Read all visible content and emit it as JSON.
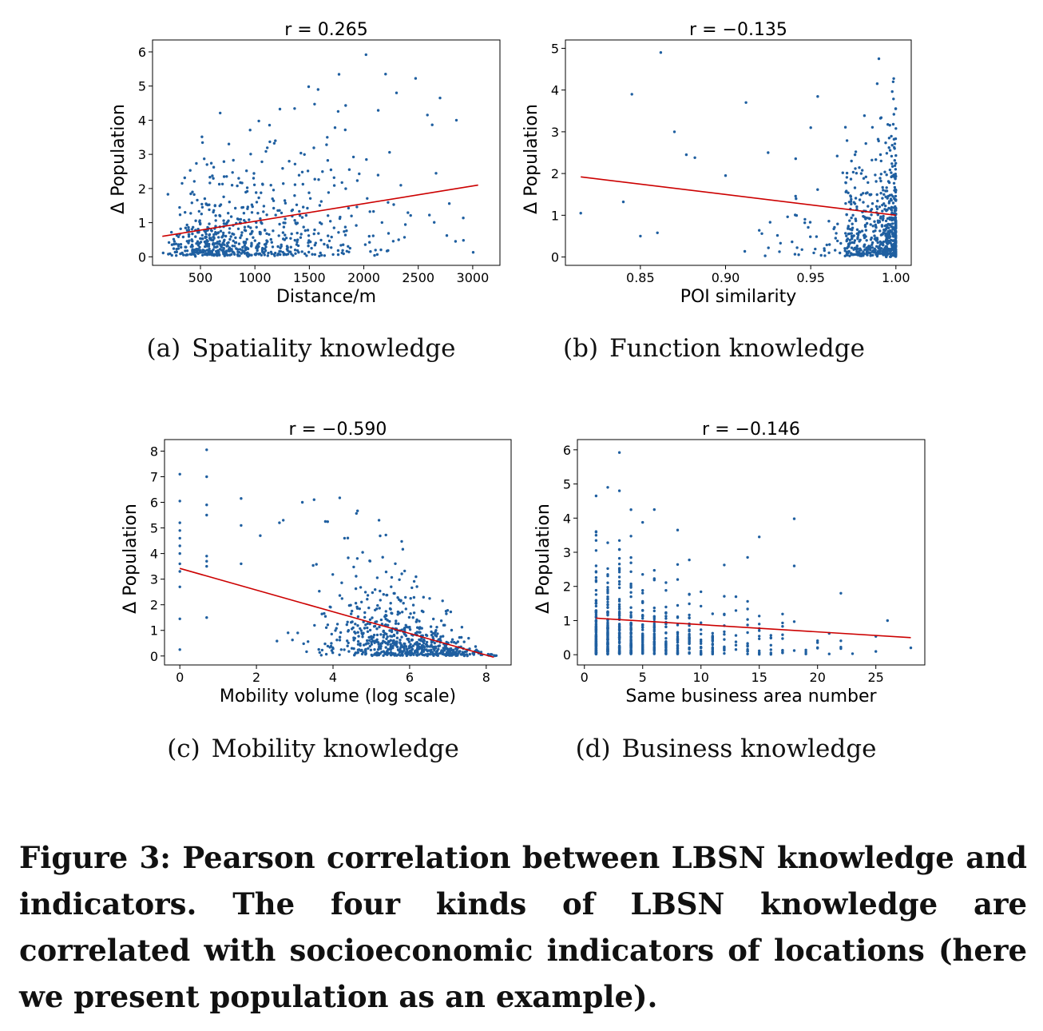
{
  "chart_data": [
    {
      "type": "scatter",
      "subcaption_label": "(a)",
      "subcaption": "Spatiality knowledge",
      "title": "r = 0.265",
      "xlabel": "Distance/m",
      "ylabel": "Δ Population",
      "xlim": [
        60,
        3250
      ],
      "ylim": [
        -0.25,
        6.35
      ],
      "xticks": [
        500,
        1000,
        1500,
        2000,
        2500,
        3000
      ],
      "xtick_labels": [
        "500",
        "1000",
        "1500",
        "2000",
        "2500",
        "3000"
      ],
      "yticks": [
        0,
        1,
        2,
        3,
        4,
        5,
        6
      ],
      "ytick_labels": [
        "0",
        "1",
        "2",
        "3",
        "4",
        "5",
        "6"
      ],
      "grid": false,
      "colors": {
        "points": "#1f5fa0",
        "fit": "#cc0000"
      },
      "fit_line": [
        [
          150,
          0.6
        ],
        [
          3050,
          2.1
        ]
      ],
      "gen": {
        "seed": 11,
        "n": 700,
        "xmode": "lognormal",
        "xa": 850,
        "xs": 0.55,
        "xmin": 150,
        "xmax": 3050,
        "ymean": 0.6,
        "yslope": 0.00052,
        "x0": 150,
        "yscale": 0.75,
        "ymax": 5.9
      },
      "outliers": [
        [
          2020,
          5.92
        ],
        [
          1580,
          4.9
        ],
        [
          2200,
          5.35
        ],
        [
          2850,
          4.0
        ],
        [
          2700,
          4.65
        ],
        [
          2300,
          4.8
        ]
      ]
    },
    {
      "type": "scatter",
      "subcaption_label": "(b)",
      "subcaption": "Function knowledge",
      "title": "r = −0.135",
      "xlabel": "POI similarity",
      "ylabel": "Δ Population",
      "xlim": [
        0.806,
        1.009
      ],
      "ylim": [
        -0.2,
        5.2
      ],
      "xticks": [
        0.85,
        0.9,
        0.95,
        1.0
      ],
      "xtick_labels": [
        "0.85",
        "0.90",
        "0.95",
        "1.00"
      ],
      "yticks": [
        0,
        1,
        2,
        3,
        4,
        5
      ],
      "ytick_labels": [
        "0",
        "1",
        "2",
        "3",
        "4",
        "5"
      ],
      "grid": false,
      "colors": {
        "points": "#1f5fa0",
        "fit": "#cc0000"
      },
      "fit_line": [
        [
          0.815,
          1.92
        ],
        [
          1.0,
          1.0
        ]
      ],
      "gen": {
        "seed": 23,
        "n": 700,
        "xmode": "skew1",
        "xa": 0.03,
        "xmin": 0.82,
        "xmax": 1.0,
        "ymean": 1.0,
        "yslope": 0,
        "x0": 1.0,
        "yscale": 0.75,
        "ymax": 4.8
      },
      "outliers": [
        [
          0.815,
          1.05
        ],
        [
          0.845,
          3.9
        ],
        [
          0.862,
          4.9
        ],
        [
          0.84,
          1.32
        ],
        [
          0.85,
          0.5
        ],
        [
          0.86,
          0.58
        ],
        [
          0.87,
          3.0
        ],
        [
          0.877,
          2.45
        ],
        [
          0.882,
          2.38
        ],
        [
          0.9,
          1.95
        ],
        [
          0.912,
          3.7
        ],
        [
          0.925,
          2.5
        ],
        [
          0.95,
          3.1
        ],
        [
          0.99,
          4.75
        ]
      ]
    },
    {
      "type": "scatter",
      "subcaption_label": "(c)",
      "subcaption": "Mobility knowledge",
      "title": "r = −0.590",
      "xlabel": "Mobility volume (log scale)",
      "ylabel": "Δ Population",
      "xlim": [
        -0.4,
        8.65
      ],
      "ylim": [
        -0.35,
        8.45
      ],
      "xticks": [
        0,
        2,
        4,
        6,
        8
      ],
      "xtick_labels": [
        "0",
        "2",
        "4",
        "6",
        "8"
      ],
      "yticks": [
        0,
        1,
        2,
        3,
        4,
        5,
        6,
        7,
        8
      ],
      "ytick_labels": [
        "0",
        "1",
        "2",
        "3",
        "4",
        "5",
        "6",
        "7",
        "8"
      ],
      "grid": false,
      "colors": {
        "points": "#1f5fa0",
        "fit": "#cc0000"
      },
      "fit_line": [
        [
          0.0,
          3.42
        ],
        [
          8.2,
          -0.05
        ]
      ],
      "gen": {
        "seed": 37,
        "n": 700,
        "xmode": "normal",
        "xa": 5.9,
        "xs": 1.05,
        "xmin": 0.7,
        "xmax": 8.3,
        "ymean": 3.42,
        "yslope": -0.42,
        "x0": 0,
        "yscale": 0.7,
        "ymax": 8.0
      },
      "outliers": [
        [
          0,
          7.1
        ],
        [
          0,
          6.05
        ],
        [
          0,
          5.2
        ],
        [
          0,
          4.9
        ],
        [
          0,
          4.6
        ],
        [
          0,
          4.3
        ],
        [
          0,
          4.0
        ],
        [
          0,
          3.6
        ],
        [
          0,
          3.3
        ],
        [
          0,
          2.7
        ],
        [
          0,
          1.45
        ],
        [
          0,
          0.25
        ],
        [
          0.7,
          8.05
        ],
        [
          0.7,
          7.0
        ],
        [
          0.7,
          5.9
        ],
        [
          0.7,
          5.5
        ],
        [
          0.7,
          3.9
        ],
        [
          0.7,
          3.7
        ],
        [
          0.7,
          3.5
        ],
        [
          0.7,
          1.5
        ],
        [
          1.6,
          6.15
        ],
        [
          1.6,
          5.1
        ],
        [
          1.6,
          3.6
        ],
        [
          2.1,
          4.7
        ],
        [
          2.6,
          5.2
        ],
        [
          2.7,
          5.3
        ],
        [
          3.2,
          6.0
        ],
        [
          3.8,
          5.25
        ],
        [
          4.3,
          4.6
        ],
        [
          5.2,
          5.3
        ]
      ]
    },
    {
      "type": "scatter",
      "subcaption_label": "(d)",
      "subcaption": "Business knowledge",
      "title": "r = −0.146",
      "xlabel": "Same business area number",
      "ylabel": "Δ Population",
      "xlim": [
        -0.6,
        29.2
      ],
      "ylim": [
        -0.3,
        6.3
      ],
      "xticks": [
        0,
        5,
        10,
        15,
        20,
        25
      ],
      "xtick_labels": [
        "0",
        "5",
        "10",
        "15",
        "20",
        "25"
      ],
      "yticks": [
        0,
        1,
        2,
        3,
        4,
        5,
        6
      ],
      "ytick_labels": [
        "0",
        "1",
        "2",
        "3",
        "4",
        "5",
        "6"
      ],
      "grid": false,
      "colors": {
        "points": "#1f5fa0",
        "fit": "#cc0000"
      },
      "fit_line": [
        [
          1,
          1.07
        ],
        [
          28,
          0.5
        ]
      ],
      "gen": {
        "seed": 53,
        "n": 700,
        "xmode": "discrete",
        "xa": 0.2,
        "xmin": 1,
        "xmax": 28,
        "ymean": 0.9,
        "yslope": -0.018,
        "x0": 1,
        "yscale": 0.75,
        "ymax": 5.9
      },
      "outliers": [
        [
          3,
          5.92
        ],
        [
          2,
          4.9
        ],
        [
          3,
          4.8
        ],
        [
          1,
          4.65
        ],
        [
          6,
          4.25
        ],
        [
          8,
          3.65
        ],
        [
          15,
          3.45
        ],
        [
          18,
          3.98
        ],
        [
          14,
          2.85
        ],
        [
          18,
          2.6
        ],
        [
          22,
          1.8
        ],
        [
          26,
          1.0
        ],
        [
          28,
          0.2
        ]
      ]
    }
  ],
  "caption": "Figure 3: Pearson correlation between LBSN knowledge and indicators. The four kinds of LBSN knowledge are correlated with socioeconomic indicators of locations (here we present population as an example)."
}
